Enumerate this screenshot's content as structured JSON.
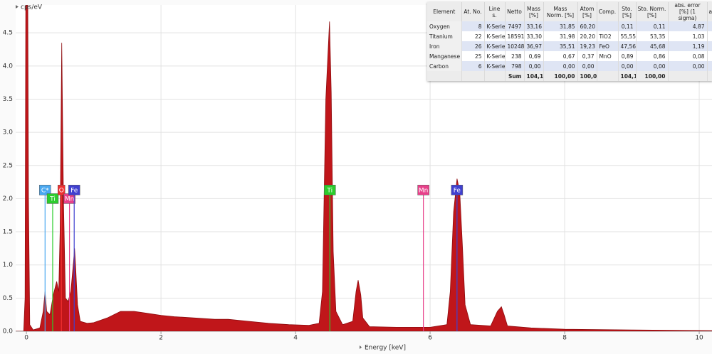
{
  "chart_data": {
    "type": "area",
    "y_label": "cps/eV",
    "x_label": "Energy [keV]",
    "color": "#c0161a",
    "edge_color": "#8e0c0f",
    "grid": true,
    "xlim": [
      -0.16,
      10.19
    ],
    "ylim": [
      0,
      4.92
    ],
    "xticks": [
      0,
      2,
      4,
      6,
      8,
      10
    ],
    "yticks": [
      {
        "value": 0,
        "label": "0.0"
      },
      0.5,
      {
        "value": 1,
        "label": "1.0"
      },
      1.5,
      {
        "value": 2,
        "label": "2.0"
      },
      2.5,
      {
        "value": 3,
        "label": "3.0"
      },
      3.5,
      {
        "value": 4,
        "label": "4.0"
      },
      4.5
    ],
    "x": [
      -0.16,
      -0.04,
      -0.02,
      -0.01,
      0.0,
      0.02,
      0.03,
      0.05,
      0.1,
      0.2,
      0.25,
      0.277,
      0.3,
      0.35,
      0.4,
      0.45,
      0.48,
      0.5,
      0.525,
      0.55,
      0.58,
      0.62,
      0.66,
      0.7,
      0.715,
      0.73,
      0.76,
      0.8,
      0.9,
      1.0,
      1.2,
      1.4,
      1.6,
      1.8,
      2.0,
      2.2,
      2.5,
      2.8,
      3.0,
      3.3,
      3.6,
      3.9,
      4.2,
      4.35,
      4.4,
      4.45,
      4.505,
      4.53,
      4.56,
      4.6,
      4.7,
      4.85,
      4.9,
      4.93,
      4.97,
      5.0,
      5.1,
      5.5,
      5.89,
      6.0,
      6.25,
      6.3,
      6.35,
      6.4,
      6.44,
      6.48,
      6.52,
      6.6,
      6.9,
      7.0,
      7.06,
      7.1,
      7.15,
      7.5,
      8.0,
      9.0,
      10.19
    ],
    "values": [
      0,
      0,
      0.5,
      4.9,
      5.0,
      5.0,
      2.0,
      0.1,
      0.02,
      0.05,
      0.3,
      0.6,
      0.3,
      0.25,
      0.55,
      0.75,
      0.6,
      1.5,
      4.35,
      2.0,
      0.5,
      0.45,
      0.6,
      1.05,
      1.25,
      1.0,
      0.4,
      0.15,
      0.12,
      0.13,
      0.2,
      0.3,
      0.3,
      0.27,
      0.24,
      0.22,
      0.2,
      0.18,
      0.18,
      0.15,
      0.12,
      0.1,
      0.09,
      0.12,
      0.6,
      3.5,
      4.67,
      3.6,
      1.2,
      0.3,
      0.1,
      0.15,
      0.6,
      0.77,
      0.55,
      0.2,
      0.07,
      0.06,
      0.06,
      0.06,
      0.1,
      0.6,
      1.8,
      2.3,
      2.1,
      1.3,
      0.4,
      0.1,
      0.08,
      0.3,
      0.37,
      0.25,
      0.08,
      0.05,
      0.03,
      0.02,
      0.01
    ],
    "markers": [
      {
        "label": "C*",
        "x": 0.277,
        "color": "#4aa8f0"
      },
      {
        "label": "Ti",
        "x": 0.39,
        "color": "#2ccc2c"
      },
      {
        "label": "O",
        "x": 0.52,
        "color": "#f03030"
      },
      {
        "label": "Mn",
        "x": 0.64,
        "color": "#e8408a"
      },
      {
        "label": "Fe",
        "x": 0.71,
        "color": "#4040d0"
      },
      {
        "label": "Ti",
        "x": 4.51,
        "color": "#2ccc2c"
      },
      {
        "label": "Mn",
        "x": 5.9,
        "color": "#e8408a"
      },
      {
        "label": "Fe",
        "x": 6.4,
        "color": "#4040d0"
      }
    ]
  },
  "table": {
    "columns": [
      "Element",
      "At. No.",
      "Line s.",
      "Netto",
      "Mass [%]",
      "Mass Norm. [%]",
      "Atom [%]",
      "Comp.",
      "Sto. [%]",
      "Sto. Norm. [%]",
      "abs. error [%] (1 sigma)",
      "a"
    ],
    "rows": [
      [
        "Oxygen",
        "8",
        "K-Serie",
        "7497",
        "33,16",
        "31,85",
        "60,20",
        null,
        "0,11",
        "0,11",
        "4,87",
        null
      ],
      [
        "Titanium",
        "22",
        "K-Serie",
        "18591",
        "33,30",
        "31,98",
        "20,20",
        "TiO2",
        "55,55",
        "53,35",
        "1,03",
        null
      ],
      [
        "Iron",
        "26",
        "K-Serie",
        "10248",
        "36,97",
        "35,51",
        "19,23",
        "FeO",
        "47,56",
        "45,68",
        "1,19",
        null
      ],
      [
        "Manganese",
        "25",
        "K-Serie",
        "238",
        "0,69",
        "0,67",
        "0,37",
        "MnO",
        "0,89",
        "0,86",
        "0,08",
        null
      ],
      [
        "Carbon",
        "6",
        "K-Serie",
        "798",
        "0,00",
        "0,00",
        "0,00",
        null,
        "0,00",
        "0,00",
        "0,00",
        null
      ],
      [
        null,
        null,
        null,
        "Sum",
        "104,12",
        "100,00",
        "100,00",
        null,
        "104,12",
        "100,00",
        null,
        null
      ]
    ]
  }
}
